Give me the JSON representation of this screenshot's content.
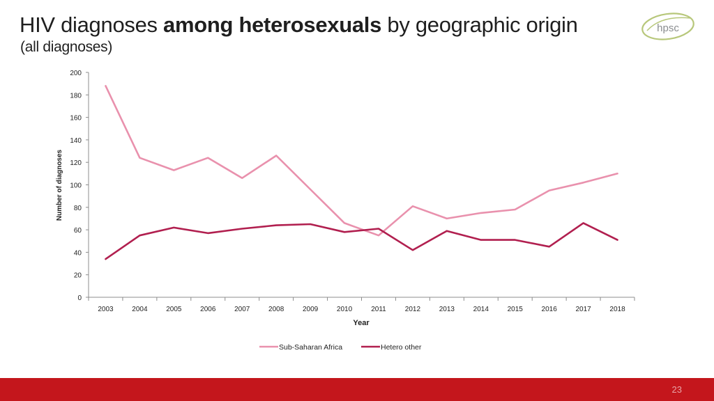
{
  "header": {
    "title_part1": "HIV diagnoses ",
    "title_bold": "among heterosexuals",
    "title_part2": " by geographic origin",
    "subtitle": "(all diagnoses)"
  },
  "logo": {
    "text": "hpsc",
    "color": "#8a8d8f",
    "accent": "#b7c77a"
  },
  "footer": {
    "page_number": "23",
    "color": "#c4161c"
  },
  "chart_data": {
    "type": "line",
    "title": "",
    "xlabel": "Year",
    "ylabel": "Number of diagnoses",
    "ylim": [
      0,
      200
    ],
    "yticks": [
      0,
      20,
      40,
      60,
      80,
      100,
      120,
      140,
      160,
      180,
      200
    ],
    "categories": [
      "2003",
      "2004",
      "2005",
      "2006",
      "2007",
      "2008",
      "2009",
      "2010",
      "2011",
      "2012",
      "2013",
      "2014",
      "2015",
      "2016",
      "2017",
      "2018"
    ],
    "series": [
      {
        "name": "Sub-Saharan Africa",
        "color": "#e991ad",
        "values": [
          188,
          124,
          113,
          124,
          106,
          126,
          96,
          66,
          55,
          81,
          70,
          75,
          78,
          95,
          102,
          110
        ]
      },
      {
        "name": "Hetero other",
        "color": "#b11f4f",
        "values": [
          34,
          55,
          62,
          57,
          61,
          64,
          65,
          58,
          61,
          42,
          59,
          51,
          51,
          45,
          66,
          51
        ]
      }
    ],
    "legend_position": "bottom-center",
    "grid": false
  }
}
